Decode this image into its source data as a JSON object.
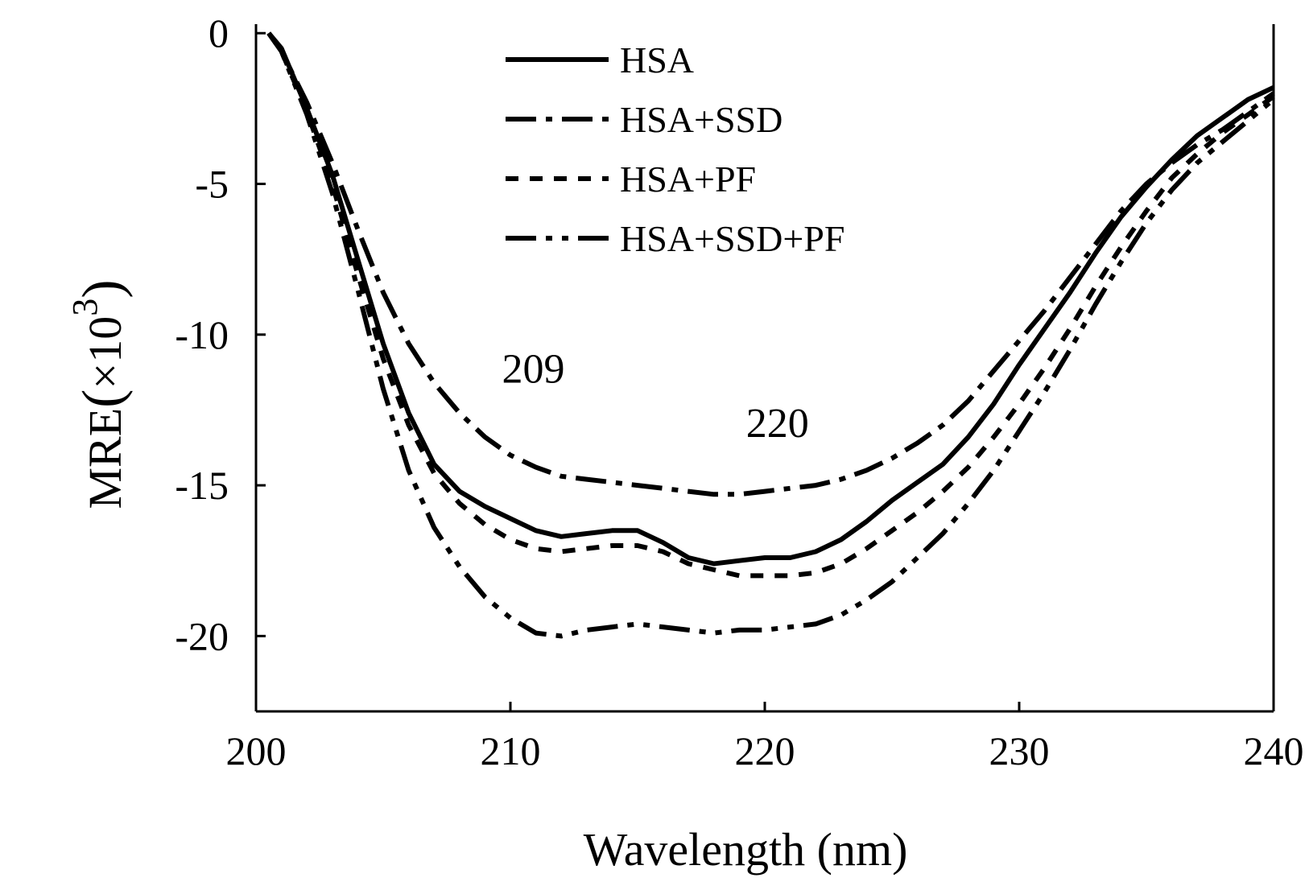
{
  "chart_data": {
    "type": "line",
    "title": "",
    "xlabel": "Wavelength (nm)",
    "ylabel_main": "MRE",
    "ylabel_paren_open": "(",
    "ylabel_unit": "×10",
    "ylabel_exponent": "3",
    "ylabel_paren_close": ")",
    "xlim": [
      200,
      240
    ],
    "ylim": [
      -22.5,
      0.3
    ],
    "xticks": [
      200,
      210,
      220,
      230,
      240
    ],
    "xtick_labels": [
      "200",
      "210",
      "220",
      "230",
      "240"
    ],
    "yticks": [
      0,
      -5,
      -10,
      -15,
      -20
    ],
    "ytick_labels": [
      "0",
      "-5",
      "-10",
      "-15",
      "-20"
    ],
    "grid": false,
    "legend_position": "top-center",
    "annotations": [
      {
        "text": "209",
        "x": 210.9,
        "y": -11.6
      },
      {
        "text": "220",
        "x": 220.5,
        "y": -13.4
      }
    ],
    "series": [
      {
        "name": "HSA",
        "style": "solid",
        "x": [
          200.5,
          201,
          202,
          203,
          204,
          205,
          206,
          207,
          208,
          209,
          210,
          211,
          212,
          213,
          214,
          215,
          216,
          217,
          218,
          219,
          220,
          221,
          222,
          223,
          224,
          225,
          226,
          227,
          228,
          229,
          230,
          231,
          232,
          233,
          234,
          235,
          236,
          237,
          238,
          239,
          240
        ],
        "y": [
          0.0,
          -0.5,
          -2.5,
          -4.7,
          -7.5,
          -10.3,
          -12.6,
          -14.3,
          -15.2,
          -15.7,
          -16.1,
          -16.5,
          -16.7,
          -16.6,
          -16.5,
          -16.5,
          -16.9,
          -17.4,
          -17.6,
          -17.5,
          -17.4,
          -17.4,
          -17.2,
          -16.8,
          -16.2,
          -15.5,
          -14.9,
          -14.3,
          -13.4,
          -12.3,
          -11.0,
          -9.8,
          -8.6,
          -7.3,
          -6.1,
          -5.1,
          -4.2,
          -3.4,
          -2.8,
          -2.2,
          -1.8
        ]
      },
      {
        "name": "HSA+SSD",
        "style": "dash-dot",
        "x": [
          200.5,
          201,
          202,
          203,
          204,
          205,
          206,
          207,
          208,
          209,
          210,
          211,
          212,
          213,
          214,
          215,
          216,
          217,
          218,
          219,
          220,
          221,
          222,
          223,
          224,
          225,
          226,
          227,
          228,
          229,
          230,
          231,
          232,
          233,
          234,
          235,
          236,
          237,
          238,
          239,
          240
        ],
        "y": [
          0.0,
          -0.6,
          -2.3,
          -4.3,
          -6.5,
          -8.6,
          -10.3,
          -11.6,
          -12.6,
          -13.4,
          -14.0,
          -14.4,
          -14.7,
          -14.8,
          -14.9,
          -15.0,
          -15.1,
          -15.2,
          -15.3,
          -15.3,
          -15.2,
          -15.1,
          -15.0,
          -14.8,
          -14.5,
          -14.1,
          -13.6,
          -13.0,
          -12.2,
          -11.2,
          -10.2,
          -9.2,
          -8.1,
          -7.0,
          -5.9,
          -5.0,
          -4.3,
          -3.7,
          -3.2,
          -2.6,
          -2.0
        ]
      },
      {
        "name": "HSA+PF",
        "style": "dashed",
        "x": [
          200.5,
          201,
          202,
          203,
          204,
          205,
          206,
          207,
          208,
          209,
          210,
          211,
          212,
          213,
          214,
          215,
          216,
          217,
          218,
          219,
          220,
          221,
          222,
          223,
          224,
          225,
          226,
          227,
          228,
          229,
          230,
          231,
          232,
          233,
          234,
          235,
          236,
          237,
          238,
          239,
          240
        ],
        "y": [
          0.0,
          -0.6,
          -2.6,
          -5.0,
          -8.0,
          -10.8,
          -13.0,
          -14.6,
          -15.6,
          -16.3,
          -16.8,
          -17.1,
          -17.2,
          -17.1,
          -17.0,
          -17.0,
          -17.2,
          -17.6,
          -17.8,
          -18.0,
          -18.0,
          -18.0,
          -17.9,
          -17.6,
          -17.1,
          -16.5,
          -15.9,
          -15.2,
          -14.4,
          -13.4,
          -12.3,
          -11.1,
          -9.8,
          -8.4,
          -7.1,
          -5.9,
          -4.8,
          -4.0,
          -3.3,
          -2.7,
          -2.1
        ]
      },
      {
        "name": "HSA+SSD+PF",
        "style": "dash-dot-dot",
        "x": [
          200.5,
          201,
          202,
          203,
          204,
          205,
          206,
          207,
          208,
          209,
          210,
          211,
          212,
          213,
          214,
          215,
          216,
          217,
          218,
          219,
          220,
          221,
          222,
          223,
          224,
          225,
          226,
          227,
          228,
          229,
          230,
          231,
          232,
          233,
          234,
          235,
          236,
          237,
          238,
          239,
          240
        ],
        "y": [
          0.0,
          -0.6,
          -2.7,
          -5.3,
          -8.5,
          -11.8,
          -14.5,
          -16.4,
          -17.7,
          -18.7,
          -19.4,
          -19.9,
          -20.0,
          -19.8,
          -19.7,
          -19.6,
          -19.7,
          -19.8,
          -19.9,
          -19.8,
          -19.8,
          -19.7,
          -19.6,
          -19.3,
          -18.8,
          -18.2,
          -17.4,
          -16.6,
          -15.6,
          -14.5,
          -13.2,
          -11.9,
          -10.5,
          -9.0,
          -7.6,
          -6.3,
          -5.2,
          -4.3,
          -3.6,
          -2.9,
          -2.2
        ]
      }
    ]
  }
}
